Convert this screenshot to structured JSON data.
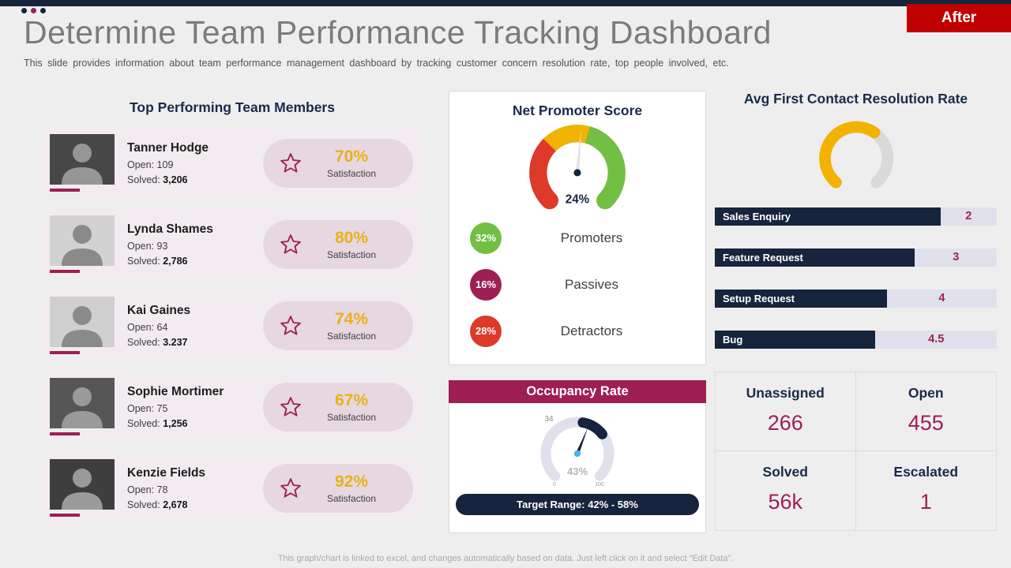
{
  "badge": {
    "label": "After"
  },
  "header": {
    "title": "Determine Team Performance Tracking Dashboard",
    "subtitle": "This slide provides information about team performance management dashboard by tracking customer concern resolution rate, top people involved, etc."
  },
  "team": {
    "title": "Top Performing Team Members",
    "open_label": "Open:",
    "solved_label": "Solved:",
    "satisfaction_label": "Satisfaction",
    "members": [
      {
        "name": "Tanner Hodge",
        "open": "109",
        "solved": "3,206",
        "satisfaction": "70%"
      },
      {
        "name": "Lynda Shames",
        "open": "93",
        "solved": "2,786",
        "satisfaction": "80%"
      },
      {
        "name": "Kai Gaines",
        "open": "64",
        "solved": "3.237",
        "satisfaction": "74%"
      },
      {
        "name": "Sophie Mortimer",
        "open": "75",
        "solved": "1,256",
        "satisfaction": "67%"
      },
      {
        "name": "Kenzie Fields",
        "open": "78",
        "solved": "2,678",
        "satisfaction": "92%"
      }
    ]
  },
  "nps": {
    "title": "Net Promoter Score",
    "center_value": "24%",
    "legend": [
      {
        "pct": "32%",
        "label": "Promoters",
        "color": "#72bf44"
      },
      {
        "pct": "16%",
        "label": "Passives",
        "color": "#9e1f52"
      },
      {
        "pct": "28%",
        "label": "Detractors",
        "color": "#dd3a2a"
      }
    ]
  },
  "occupancy": {
    "title": "Occupancy Rate",
    "pointer_label": "34",
    "center_value": "43%",
    "tick_min": "0",
    "tick_max": "100",
    "target": "Target Range: 42% - 58%"
  },
  "fcr": {
    "title": "Avg First Contact Resolution Rate",
    "bars": [
      {
        "label": "Sales Enquiry",
        "value": "2",
        "fill_pct": 80
      },
      {
        "label": "Feature Request",
        "value": "3",
        "fill_pct": 71
      },
      {
        "label": "Setup Request",
        "value": "4",
        "fill_pct": 61
      },
      {
        "label": "Bug",
        "value": "4.5",
        "fill_pct": 57
      }
    ],
    "stats": [
      {
        "label": "Unassigned",
        "value": "266"
      },
      {
        "label": "Open",
        "value": "455"
      },
      {
        "label": "Solved",
        "value": "56k"
      },
      {
        "label": "Escalated",
        "value": "1"
      }
    ]
  },
  "footer": "This graph/chart is linked to excel, and changes automatically based on data. Just left click on it and select “Edit Data”.",
  "chart_data": [
    {
      "type": "pie",
      "variant": "gauge",
      "title": "Net Promoter Score",
      "center_label": "24%",
      "slices": [
        {
          "label": "Detractors",
          "value": 28,
          "color": "#dd3a2a"
        },
        {
          "label": "Passives",
          "value": 16,
          "color": "#9e1f52"
        },
        {
          "label": "Promoters",
          "value": 32,
          "color": "#72bf44"
        }
      ],
      "legend_position": "below"
    },
    {
      "type": "pie",
      "variant": "gauge",
      "title": "Occupancy Rate",
      "center_label": "43%",
      "pointer_label": "34",
      "axis_range": [
        0,
        100
      ],
      "annotation": "Target Range: 42% - 58%"
    },
    {
      "type": "bar",
      "title": "Avg First Contact Resolution Rate",
      "categories": [
        "Sales Enquiry",
        "Feature Request",
        "Setup Request",
        "Bug"
      ],
      "values": [
        2,
        3,
        4,
        4.5
      ],
      "orientation": "horizontal"
    },
    {
      "type": "table",
      "rows": [
        [
          "Unassigned",
          "266"
        ],
        [
          "Open",
          "455"
        ],
        [
          "Solved",
          "56k"
        ],
        [
          "Escalated",
          "1"
        ]
      ]
    }
  ]
}
